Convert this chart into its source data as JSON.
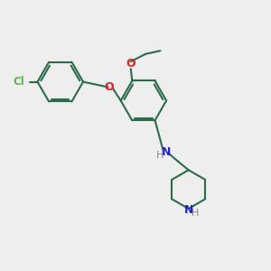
{
  "background_color": "#eeeeee",
  "bond_color": "#2d6b4a",
  "cl_color": "#55bb44",
  "o_color": "#dd2222",
  "n_color": "#2222cc",
  "h_color": "#888888",
  "line_width": 1.5,
  "figsize": [
    3.0,
    3.0
  ],
  "dpi": 100,
  "xlim": [
    0,
    10
  ],
  "ylim": [
    0,
    10
  ]
}
